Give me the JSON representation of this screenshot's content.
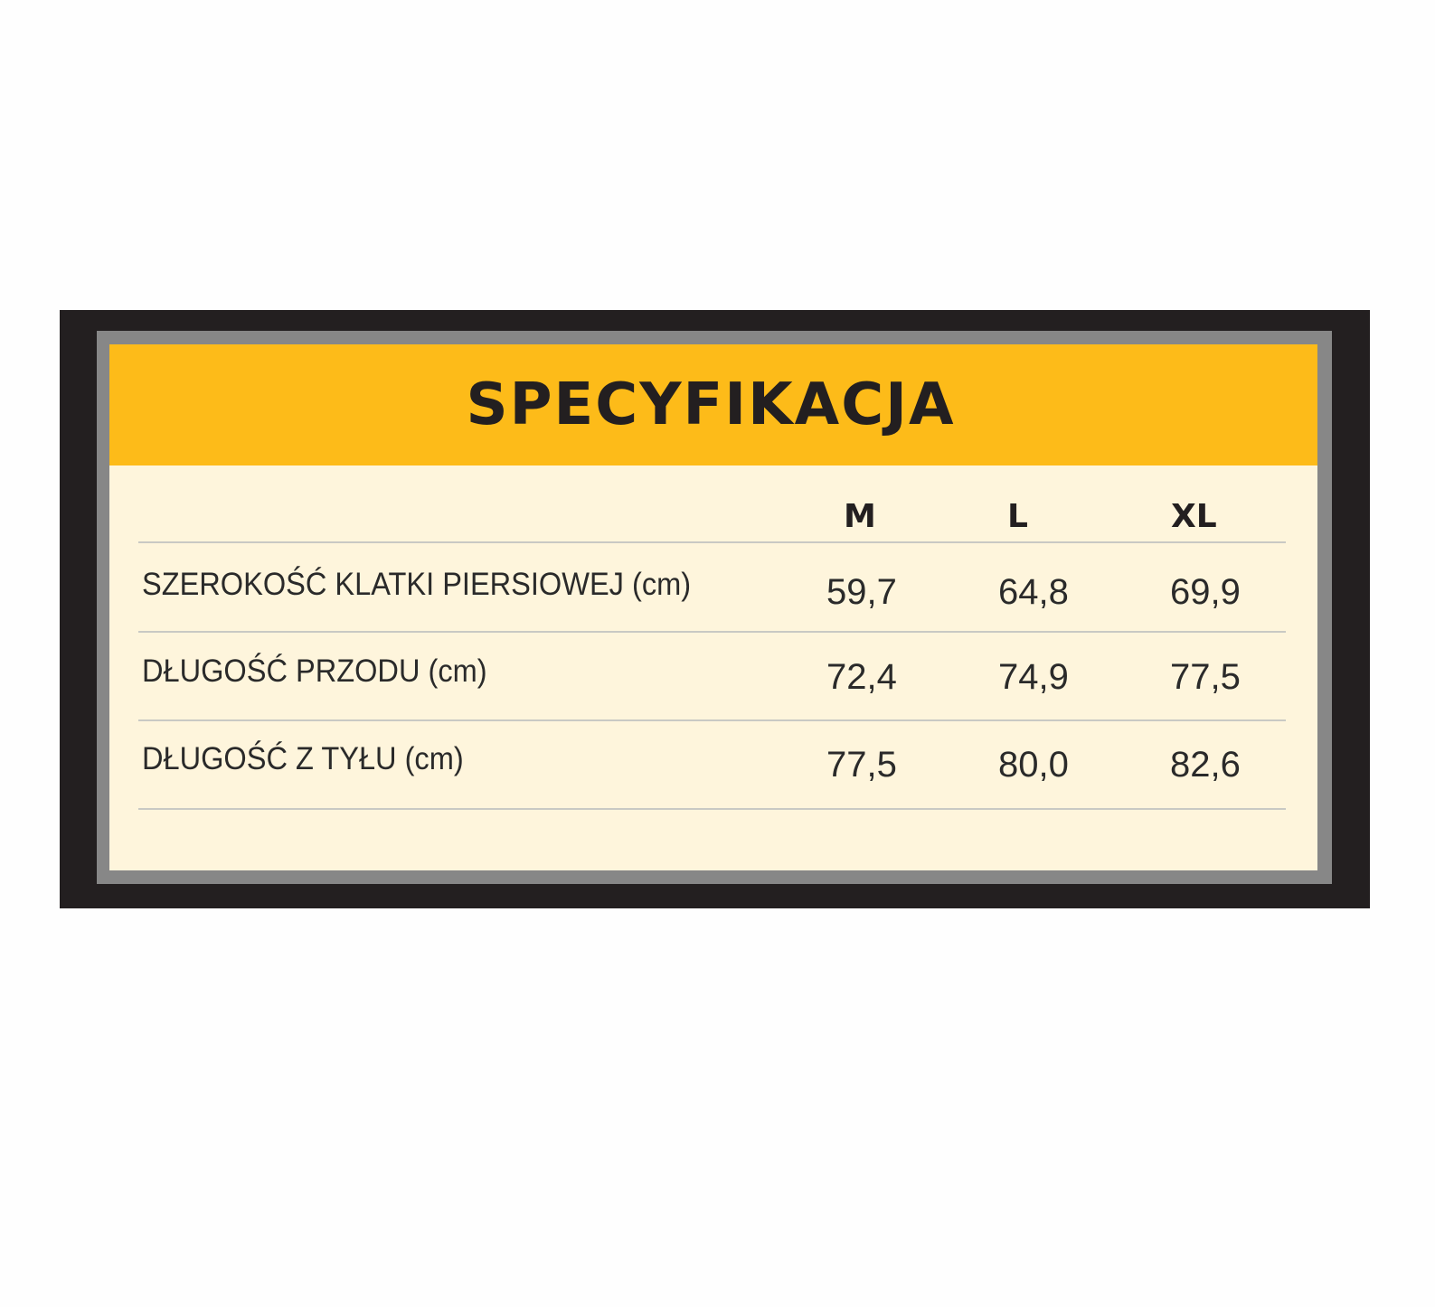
{
  "title": "SPECYFIKACJA",
  "colors": {
    "frame": "#231f20",
    "border": "#878787",
    "header": "#fdbb19",
    "body": "#fef5dc"
  },
  "columns": [
    "M",
    "L",
    "XL"
  ],
  "rows": [
    {
      "label": "SZEROKOŚĆ KLATKI PIERSIOWEJ (cm)",
      "values": [
        "59,7",
        "64,8",
        "69,9"
      ]
    },
    {
      "label": "DŁUGOŚĆ PRZODU (cm)",
      "values": [
        "72,4",
        "74,9",
        "77,5"
      ]
    },
    {
      "label": "DŁUGOŚĆ Z TYŁU (cm)",
      "values": [
        "77,5",
        "80,0",
        "82,6"
      ]
    }
  ]
}
